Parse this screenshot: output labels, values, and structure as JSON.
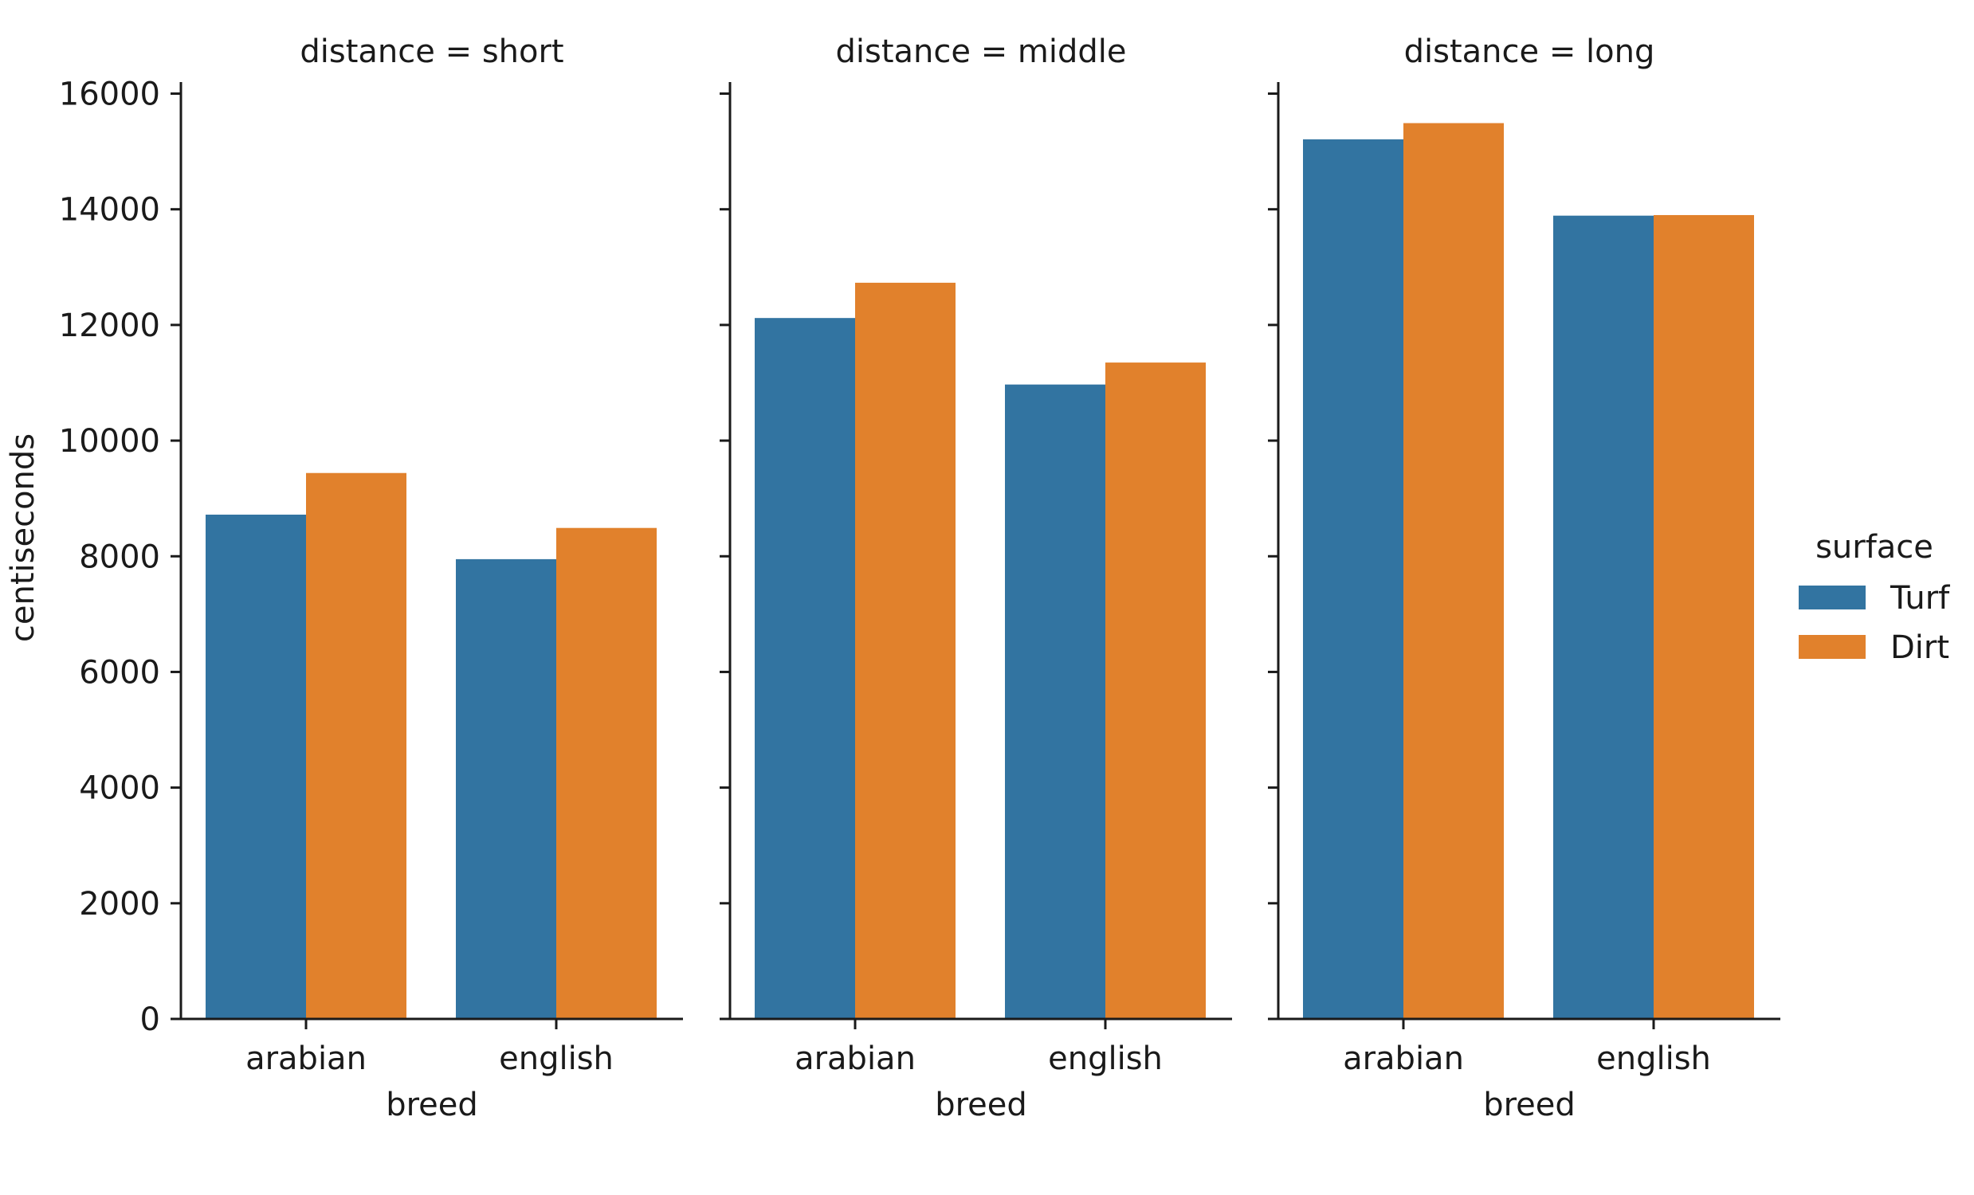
{
  "chart_data": {
    "type": "bar",
    "yaxis_label": "centiseconds",
    "ylim": [
      0,
      16200
    ],
    "yticks": [
      0,
      2000,
      4000,
      6000,
      8000,
      10000,
      12000,
      14000,
      16000
    ],
    "legend": {
      "title": "surface",
      "placement": "right",
      "entries": [
        {
          "label": "Turf",
          "color": "#3274a1"
        },
        {
          "label": "Dirt",
          "color": "#e1812c"
        }
      ]
    },
    "facets": [
      {
        "title": "distance = short",
        "xlabel": "breed",
        "categories": [
          "arabian",
          "english"
        ],
        "series": [
          {
            "name": "Turf",
            "values": [
              8720,
              7950
            ]
          },
          {
            "name": "Dirt",
            "values": [
              9440,
              8490
            ]
          }
        ]
      },
      {
        "title": "distance = middle",
        "xlabel": "breed",
        "categories": [
          "arabian",
          "english"
        ],
        "series": [
          {
            "name": "Turf",
            "values": [
              12120,
              10970
            ]
          },
          {
            "name": "Dirt",
            "values": [
              12730,
              11350
            ]
          }
        ]
      },
      {
        "title": "distance = long",
        "xlabel": "breed",
        "categories": [
          "arabian",
          "english"
        ],
        "series": [
          {
            "name": "Turf",
            "values": [
              15210,
              13890
            ]
          },
          {
            "name": "Dirt",
            "values": [
              15490,
              13900
            ]
          }
        ]
      }
    ]
  }
}
